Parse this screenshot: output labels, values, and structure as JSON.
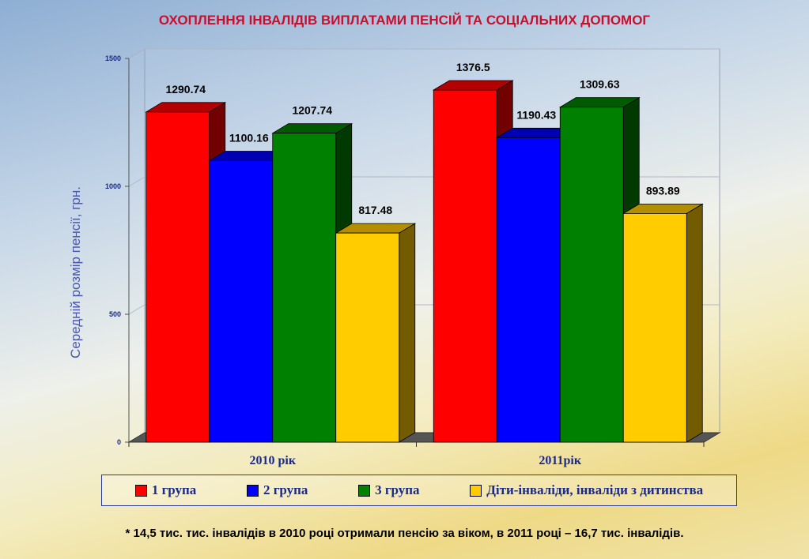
{
  "chart_data": {
    "type": "bar",
    "title": "ОХОПЛЕННЯ ІНВАЛІДІВ ВИПЛАТАМИ ПЕНСІЙ ТА СОЦІАЛЬНИХ ДОПОМОГ",
    "ylabel": "Середній розмір пенсії, грн.",
    "xlabel": "",
    "categories": [
      "2010 рік",
      "2011рік"
    ],
    "series": [
      {
        "name": "1 група",
        "color": "#ff0000",
        "values": [
          1290.74,
          1376.5
        ],
        "labels": [
          "1290.74",
          "1376.5"
        ]
      },
      {
        "name": "2 група",
        "color": "#0000ff",
        "values": [
          1100.16,
          1190.43
        ],
        "labels": [
          "1100.16",
          "1190.43"
        ]
      },
      {
        "name": "3 група",
        "color": "#008000",
        "values": [
          1207.74,
          1309.63
        ],
        "labels": [
          "1207.74",
          "1309.63"
        ]
      },
      {
        "name": "Діти-інваліди, інваліди з дитинства",
        "color": "#ffcc00",
        "values": [
          817.48,
          893.89
        ],
        "labels": [
          "817.48",
          "893.89"
        ]
      }
    ],
    "ylim": [
      0,
      1500
    ],
    "yticks": [
      0,
      500,
      1000,
      1500
    ],
    "grid": true,
    "legend": "bottom"
  },
  "footnote": "* 14,5 тис.  тис. інвалідів в 2010 році отримали  пенсію за віком, в 2011 році – 16,7 тис.  інвалідів."
}
